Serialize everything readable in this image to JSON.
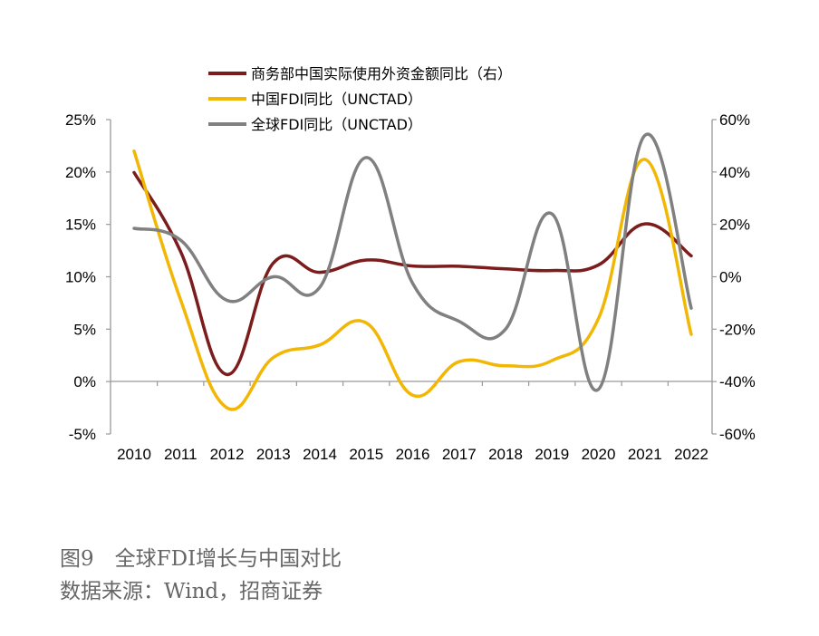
{
  "chart_data": {
    "type": "line",
    "x": [
      "2010",
      "2011",
      "2012",
      "2013",
      "2014",
      "2015",
      "2016",
      "2017",
      "2018",
      "2019",
      "2020",
      "2021",
      "2022"
    ],
    "series": [
      {
        "name": "商务部中国实际使用外资金额同比（右）",
        "axis": "right",
        "color": "#7b1d1d",
        "values": [
          39.8,
          9.7,
          -37.3,
          5.3,
          1.7,
          6.4,
          4.1,
          4.0,
          3.0,
          2.4,
          4.5,
          20.2,
          8.0
        ]
      },
      {
        "name": "中国FDI同比（UNCTAD）",
        "axis": "left",
        "color": "#f2b705",
        "values": [
          22.0,
          7.8,
          -2.5,
          2.3,
          3.5,
          5.6,
          -1.3,
          1.9,
          1.5,
          2.0,
          6.0,
          21.2,
          4.5
        ]
      },
      {
        "name": "全球FDI同比（UNCTAD）",
        "axis": "right",
        "color": "#808080",
        "values": [
          18.5,
          14.0,
          -9.0,
          0.0,
          -4.0,
          45.5,
          -2.5,
          -17.0,
          -20.0,
          24.0,
          -43.0,
          54.0,
          -12.0
        ]
      }
    ],
    "y_left": {
      "ylim": [
        -5,
        25
      ],
      "ticks": [
        "-5%",
        "0%",
        "5%",
        "10%",
        "15%",
        "20%",
        "25%"
      ]
    },
    "y_right": {
      "ylim": [
        -60,
        60
      ],
      "ticks": [
        "-60%",
        "-40%",
        "-20%",
        "0%",
        "20%",
        "40%",
        "60%"
      ]
    },
    "legend_position": "top-center",
    "grid": false
  },
  "caption": {
    "title": "图9　全球FDI增长与中国对比",
    "source": "数据来源：Wind，招商证券"
  }
}
